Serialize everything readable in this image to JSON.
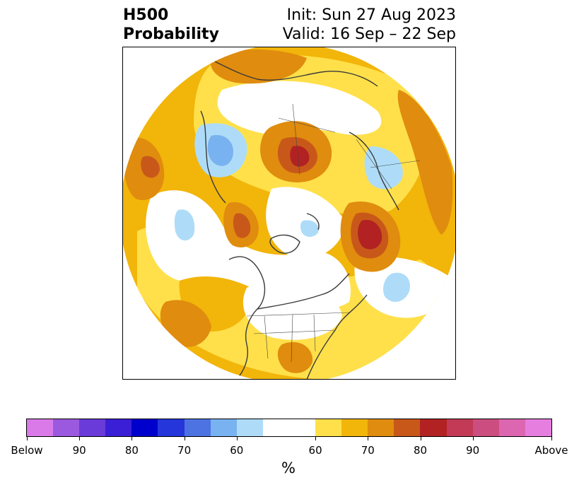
{
  "header": {
    "title_line1": "H500",
    "title_line2": "Probability",
    "init": "Init: Sun 27 Aug 2023",
    "valid": "Valid: 16 Sep – 22 Sep"
  },
  "colorbar": {
    "unit": "%",
    "colors": [
      "#d97ae8",
      "#9b59e0",
      "#6a3bd9",
      "#3a1fd6",
      "#0000cc",
      "#2536db",
      "#4d73e3",
      "#79b2f0",
      "#aedcf8",
      "#ffffff",
      "#ffe04a",
      "#f2b50a",
      "#e08c0e",
      "#c8581a",
      "#b22222",
      "#c23a55",
      "#cc4e80",
      "#dd66b0",
      "#e67ee0"
    ],
    "tick_labels": [
      "Below",
      "90",
      "80",
      "70",
      "60",
      "60",
      "70",
      "80",
      "90",
      "Above"
    ]
  },
  "legend_colors": {
    "light_blue": "#aedcf8",
    "blue": "#79b2f0",
    "dark_blue": "#4d73e3",
    "yellow": "#ffe04a",
    "gold": "#f2b50a",
    "orange": "#e08c0e",
    "dark_orange": "#c8581a",
    "red": "#b22222"
  }
}
